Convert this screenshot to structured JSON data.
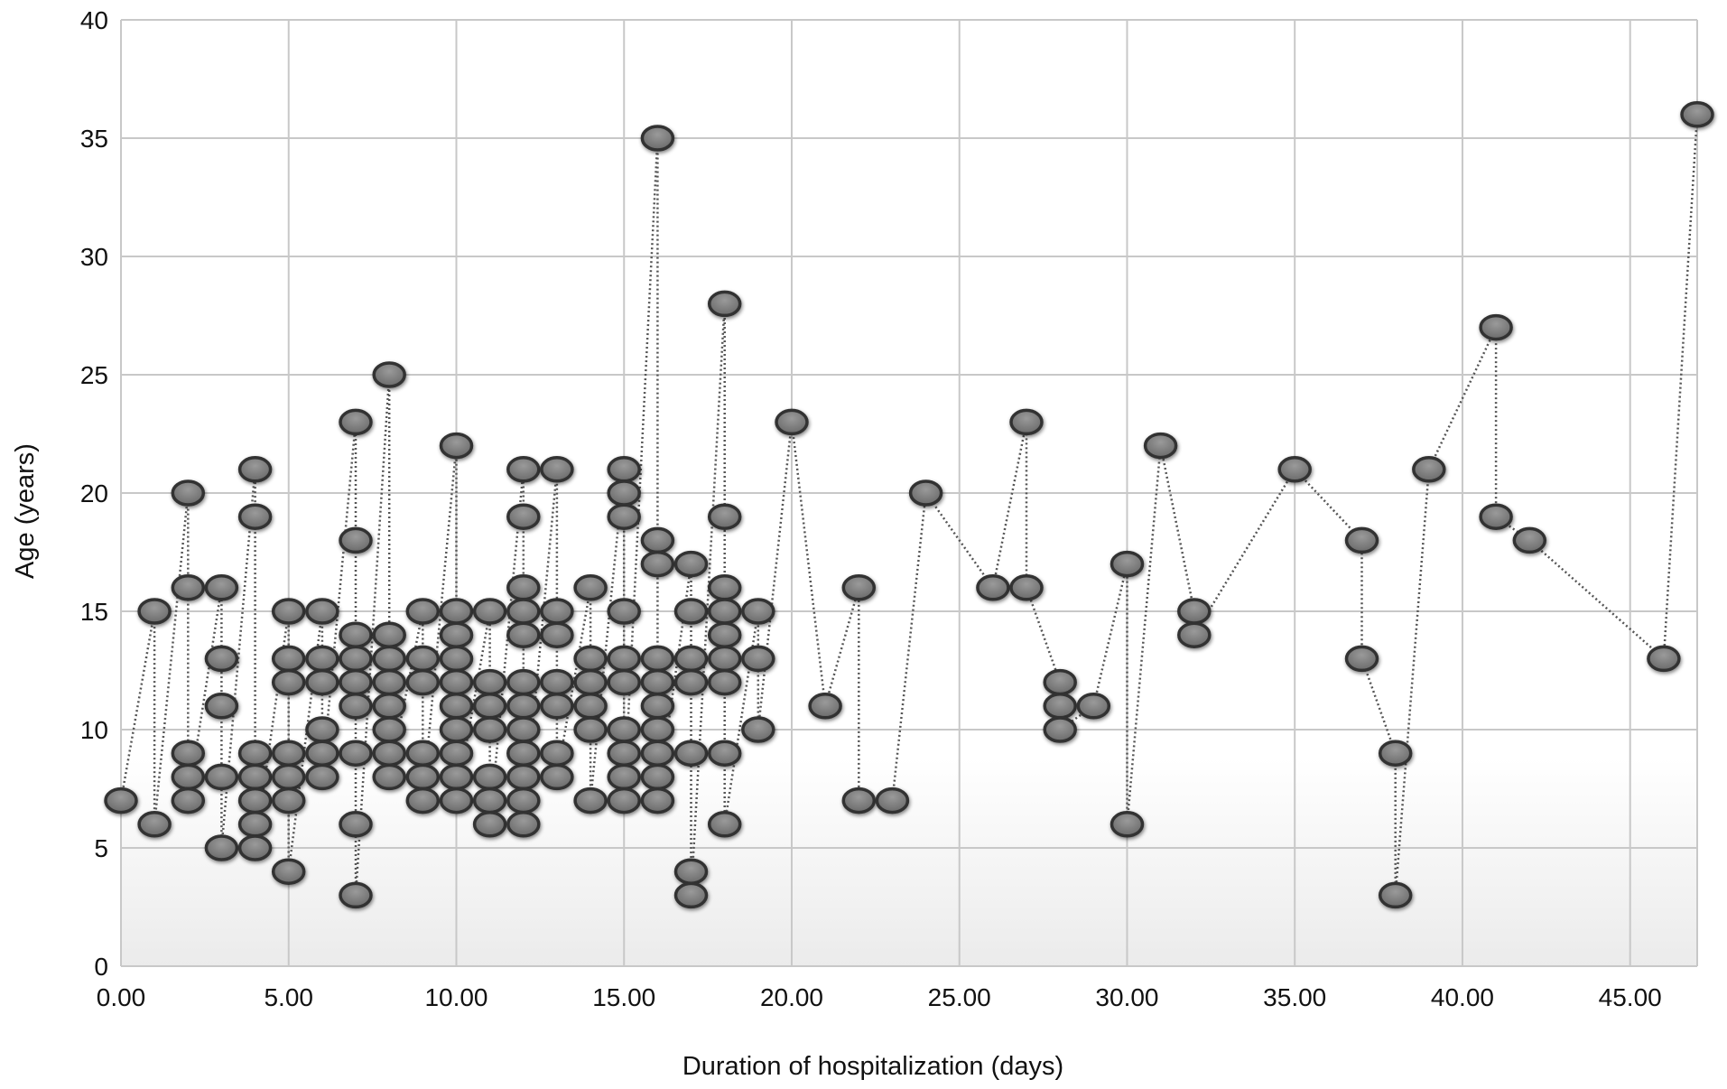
{
  "chart_data": {
    "type": "scatter",
    "title": "",
    "xlabel": "Duration of hospitalization (days)",
    "ylabel": "Age (years)",
    "xlim": [
      0,
      47
    ],
    "ylim": [
      0,
      40
    ],
    "x_ticks": [
      "0.00",
      "5.00",
      "10.00",
      "15.00",
      "20.00",
      "25.00",
      "30.00",
      "35.00",
      "40.00",
      "45.00"
    ],
    "y_ticks": [
      "0",
      "5",
      "10",
      "15",
      "20",
      "25",
      "30",
      "35",
      "40"
    ],
    "grid": true,
    "connector_style": "dotted line connecting points in order",
    "colors": {
      "marker_fill": "#7a7a7a",
      "marker_stroke": "#333333",
      "grid": "#c8c8c8",
      "connector": "#555555"
    },
    "series": [
      {
        "points": [
          [
            0,
            7
          ],
          [
            1,
            15
          ],
          [
            1,
            6
          ],
          [
            2,
            20
          ],
          [
            2,
            16
          ],
          [
            2,
            9
          ],
          [
            2,
            8
          ],
          [
            2,
            7
          ],
          [
            3,
            16
          ],
          [
            3,
            13
          ],
          [
            3,
            11
          ],
          [
            3,
            8
          ],
          [
            3,
            5
          ],
          [
            4,
            21
          ],
          [
            4,
            19
          ],
          [
            4,
            9
          ],
          [
            4,
            8
          ],
          [
            4,
            7
          ],
          [
            4,
            6
          ],
          [
            4,
            5
          ],
          [
            5,
            15
          ],
          [
            5,
            13
          ],
          [
            5,
            12
          ],
          [
            5,
            9
          ],
          [
            5,
            8
          ],
          [
            5,
            7
          ],
          [
            5,
            4
          ],
          [
            6,
            15
          ],
          [
            6,
            13
          ],
          [
            6,
            12
          ],
          [
            6,
            10
          ],
          [
            6,
            9
          ],
          [
            6,
            8
          ],
          [
            7,
            23
          ],
          [
            7,
            18
          ],
          [
            7,
            14
          ],
          [
            7,
            13
          ],
          [
            7,
            12
          ],
          [
            7,
            11
          ],
          [
            7,
            9
          ],
          [
            7,
            6
          ],
          [
            7,
            3
          ],
          [
            8,
            25
          ],
          [
            8,
            14
          ],
          [
            8,
            13
          ],
          [
            8,
            12
          ],
          [
            8,
            11
          ],
          [
            8,
            10
          ],
          [
            8,
            9
          ],
          [
            8,
            8
          ],
          [
            9,
            15
          ],
          [
            9,
            13
          ],
          [
            9,
            12
          ],
          [
            9,
            9
          ],
          [
            9,
            8
          ],
          [
            9,
            7
          ],
          [
            10,
            22
          ],
          [
            10,
            15
          ],
          [
            10,
            14
          ],
          [
            10,
            13
          ],
          [
            10,
            12
          ],
          [
            10,
            11
          ],
          [
            10,
            10
          ],
          [
            10,
            9
          ],
          [
            10,
            8
          ],
          [
            10,
            7
          ],
          [
            11,
            15
          ],
          [
            11,
            12
          ],
          [
            11,
            11
          ],
          [
            11,
            10
          ],
          [
            11,
            8
          ],
          [
            11,
            7
          ],
          [
            11,
            6
          ],
          [
            12,
            21
          ],
          [
            12,
            19
          ],
          [
            12,
            16
          ],
          [
            12,
            15
          ],
          [
            12,
            14
          ],
          [
            12,
            12
          ],
          [
            12,
            11
          ],
          [
            12,
            10
          ],
          [
            12,
            9
          ],
          [
            12,
            8
          ],
          [
            12,
            7
          ],
          [
            12,
            6
          ],
          [
            13,
            21
          ],
          [
            13,
            15
          ],
          [
            13,
            14
          ],
          [
            13,
            12
          ],
          [
            13,
            11
          ],
          [
            13,
            9
          ],
          [
            13,
            8
          ],
          [
            14,
            16
          ],
          [
            14,
            13
          ],
          [
            14,
            12
          ],
          [
            14,
            11
          ],
          [
            14,
            10
          ],
          [
            14,
            7
          ],
          [
            15,
            21
          ],
          [
            15,
            20
          ],
          [
            15,
            19
          ],
          [
            15,
            15
          ],
          [
            15,
            13
          ],
          [
            15,
            12
          ],
          [
            15,
            10
          ],
          [
            15,
            9
          ],
          [
            15,
            8
          ],
          [
            15,
            7
          ],
          [
            16,
            35
          ],
          [
            16,
            18
          ],
          [
            16,
            17
          ],
          [
            16,
            13
          ],
          [
            16,
            12
          ],
          [
            16,
            11
          ],
          [
            16,
            10
          ],
          [
            16,
            9
          ],
          [
            16,
            8
          ],
          [
            16,
            7
          ],
          [
            17,
            17
          ],
          [
            17,
            15
          ],
          [
            17,
            13
          ],
          [
            17,
            12
          ],
          [
            17,
            9
          ],
          [
            17,
            4
          ],
          [
            17,
            3
          ],
          [
            18,
            28
          ],
          [
            18,
            19
          ],
          [
            18,
            16
          ],
          [
            18,
            15
          ],
          [
            18,
            14
          ],
          [
            18,
            13
          ],
          [
            18,
            12
          ],
          [
            18,
            9
          ],
          [
            18,
            6
          ],
          [
            19,
            15
          ],
          [
            19,
            13
          ],
          [
            19,
            10
          ],
          [
            20,
            23
          ],
          [
            21,
            11
          ],
          [
            22,
            16
          ],
          [
            22,
            7
          ],
          [
            23,
            7
          ],
          [
            24,
            20
          ],
          [
            26,
            16
          ],
          [
            27,
            23
          ],
          [
            27,
            16
          ],
          [
            28,
            12
          ],
          [
            28,
            11
          ],
          [
            28,
            10
          ],
          [
            29,
            11
          ],
          [
            30,
            17
          ],
          [
            30,
            6
          ],
          [
            31,
            22
          ],
          [
            32,
            15
          ],
          [
            32,
            14
          ],
          [
            35,
            21
          ],
          [
            37,
            18
          ],
          [
            37,
            13
          ],
          [
            38,
            9
          ],
          [
            38,
            3
          ],
          [
            39,
            21
          ],
          [
            41,
            27
          ],
          [
            41,
            19
          ],
          [
            42,
            18
          ],
          [
            46,
            13
          ],
          [
            47,
            36
          ]
        ]
      }
    ]
  }
}
